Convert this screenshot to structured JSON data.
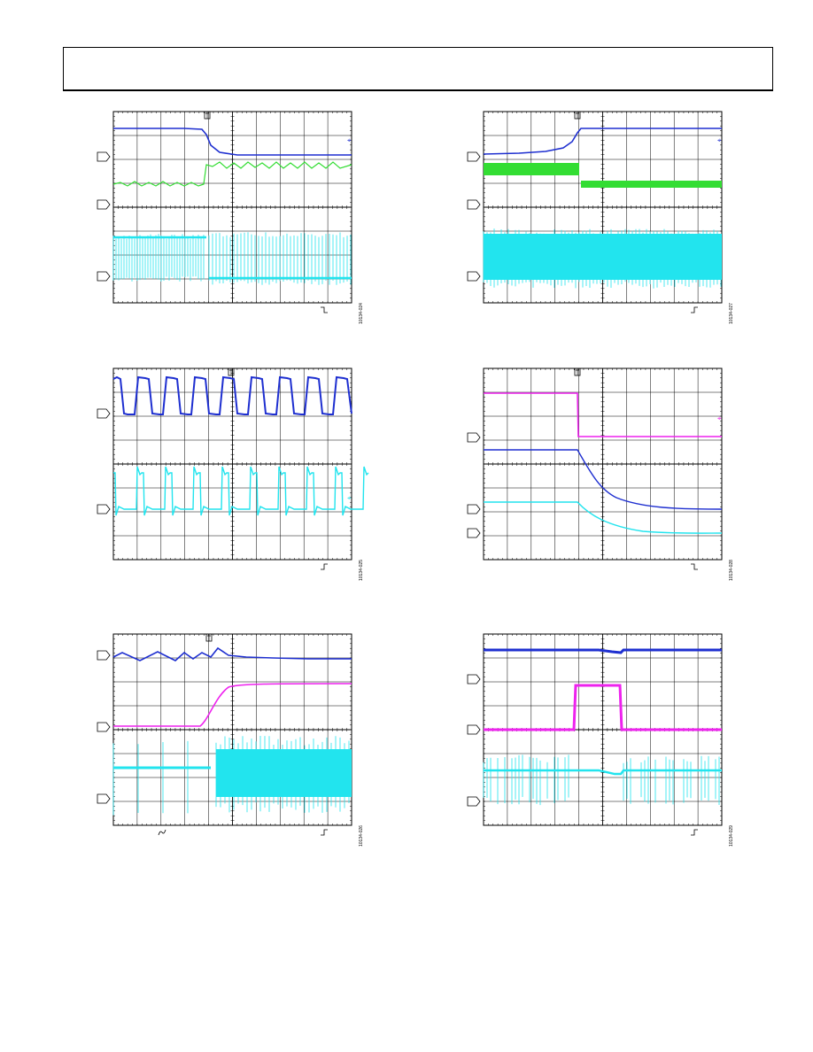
{
  "header": {
    "title": ""
  },
  "colors": {
    "grid": "#000000",
    "trace_blue": "#1e2fd0",
    "trace_green": "#33dd33",
    "trace_cyan": "#22e4ee",
    "trace_magenta": "#ee22ee"
  },
  "figures": [
    {
      "id": "10134-024",
      "channels": [
        "blue",
        "green",
        "cyan"
      ],
      "trigger": "falling"
    },
    {
      "id": "10134-027",
      "channels": [
        "blue",
        "green",
        "cyan"
      ],
      "trigger": "rising"
    },
    {
      "id": "10134-025",
      "channels": [
        "blue",
        "cyan"
      ],
      "trigger": "rising"
    },
    {
      "id": "10134-028",
      "channels": [
        "magenta",
        "blue",
        "cyan"
      ],
      "trigger": "falling"
    },
    {
      "id": "10134-026",
      "channels": [
        "blue",
        "magenta",
        "cyan"
      ],
      "trigger": "rising"
    },
    {
      "id": "10134-029",
      "channels": [
        "blue",
        "magenta",
        "cyan"
      ],
      "trigger": "rising"
    }
  ]
}
